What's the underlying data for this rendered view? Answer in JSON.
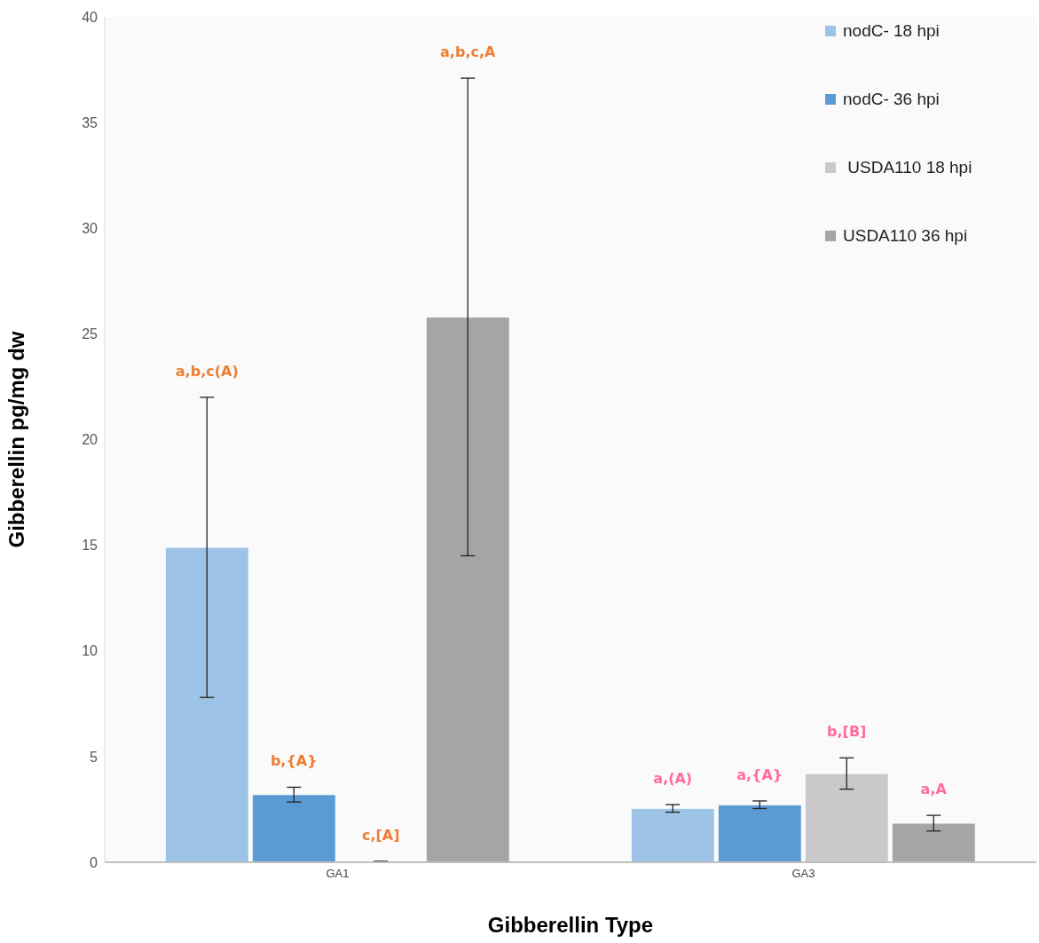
{
  "chart_data": {
    "type": "bar",
    "xlabel": "Gibberellin Type",
    "ylabel": "Gibberellin pg/mg dw",
    "categories": [
      "GA1",
      "GA3"
    ],
    "series": [
      {
        "name": "nodC- 18 hpi",
        "color": "#9dc3e6",
        "values": [
          14.9,
          2.55
        ],
        "errors": [
          7.1,
          0.18
        ]
      },
      {
        "name": "nodC- 36 hpi",
        "color": "#5b9bd5",
        "values": [
          3.2,
          2.72
        ],
        "errors": [
          0.35,
          0.18
        ]
      },
      {
        "name": " USDA110 18 hpi",
        "color": "#c9c9c9",
        "values": [
          0.03,
          4.2
        ],
        "errors": [
          0.02,
          0.74
        ]
      },
      {
        "name": "USDA110 36 hpi",
        "color": "#a5a5a5",
        "values": [
          25.8,
          1.85
        ],
        "errors": [
          11.3,
          0.37
        ]
      }
    ],
    "annotations": [
      "a,b,c(A)",
      "b,{A}",
      "c,[A]",
      "a,b,c,A",
      "a,(A)",
      "a,{A}",
      "b,[B]",
      "a,A"
    ],
    "ylim": [
      0,
      40
    ],
    "yticks": [
      0,
      5,
      10,
      15,
      20,
      25,
      30,
      35,
      40
    ],
    "grid": false,
    "legend": "top right"
  }
}
